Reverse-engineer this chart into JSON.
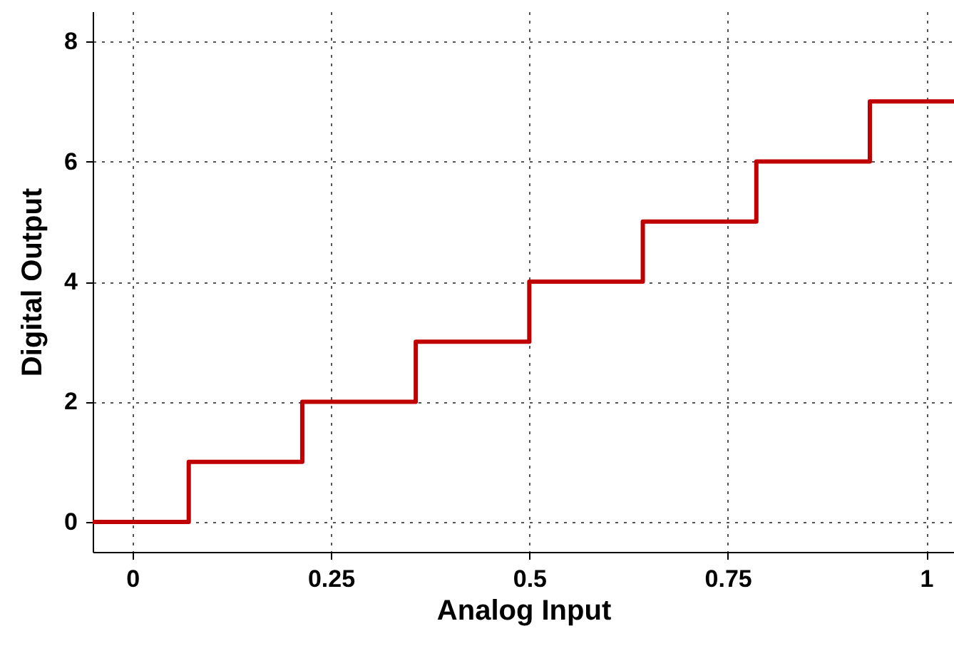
{
  "chart_data": {
    "type": "step",
    "xlabel": "Analog Input",
    "ylabel": "Digital Output",
    "x": [
      -0.05,
      0.071,
      0.214,
      0.357,
      0.5,
      0.643,
      0.786,
      0.929,
      1.035
    ],
    "series": [
      {
        "color": "#c00000",
        "values": [
          0,
          1,
          2,
          3,
          4,
          5,
          6,
          7,
          7
        ]
      }
    ],
    "xlim": [
      -0.05,
      1.035
    ],
    "xticks": [
      0,
      0.25,
      0.5,
      0.75,
      1
    ],
    "ylim": [
      -0.5,
      8.5
    ],
    "yticks": [
      0,
      2,
      4,
      6,
      8
    ],
    "grid": true,
    "marker": "none",
    "line_style": "solid"
  }
}
